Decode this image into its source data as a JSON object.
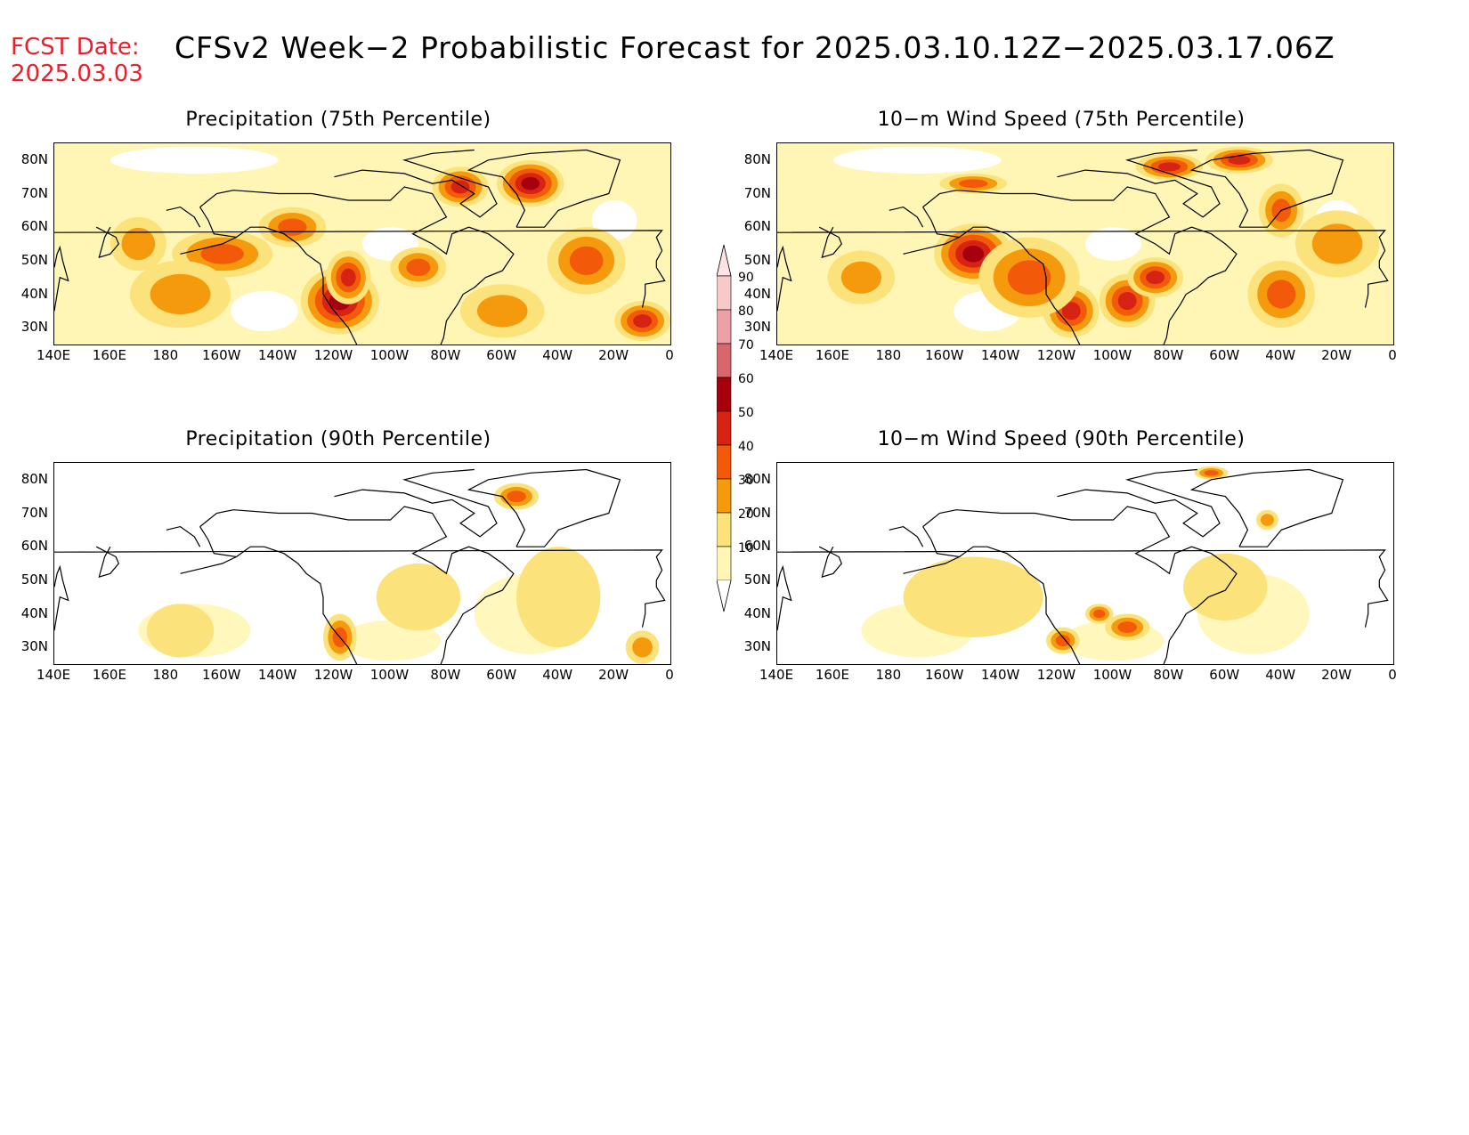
{
  "header": {
    "fcst_label": "FCST Date:",
    "fcst_date": "2025.03.03",
    "title": "CFSv2 Week−2 Probabilistic Forecast for 2025.03.10.12Z−2025.03.17.06Z"
  },
  "panels": [
    {
      "title": "Precipitation (75th Percentile)",
      "variable": "precip75",
      "intensity": 1.0
    },
    {
      "title": "10−m Wind Speed (75th Percentile)",
      "variable": "wind75",
      "intensity": 1.0
    },
    {
      "title": "Precipitation (90th Percentile)",
      "variable": "precip90",
      "intensity": 0.45
    },
    {
      "title": "10−m Wind Speed (90th Percentile)",
      "variable": "wind90",
      "intensity": 0.5
    }
  ],
  "axes": {
    "lat_labels": [
      "80N",
      "70N",
      "60N",
      "50N",
      "40N",
      "30N"
    ],
    "lon_labels": [
      "140E",
      "160E",
      "180",
      "160W",
      "140W",
      "120W",
      "100W",
      "80W",
      "60W",
      "40W",
      "20W",
      "0"
    ]
  },
  "colorbar": {
    "labels": [
      "90",
      "80",
      "70",
      "60",
      "50",
      "40",
      "30",
      "20",
      "10"
    ],
    "colors": [
      "#f7c9c9",
      "#eda1a6",
      "#d9666c",
      "#a6000f",
      "#d72314",
      "#f25a0a",
      "#f59a0c",
      "#fce27a",
      "#fff6b5"
    ]
  }
}
